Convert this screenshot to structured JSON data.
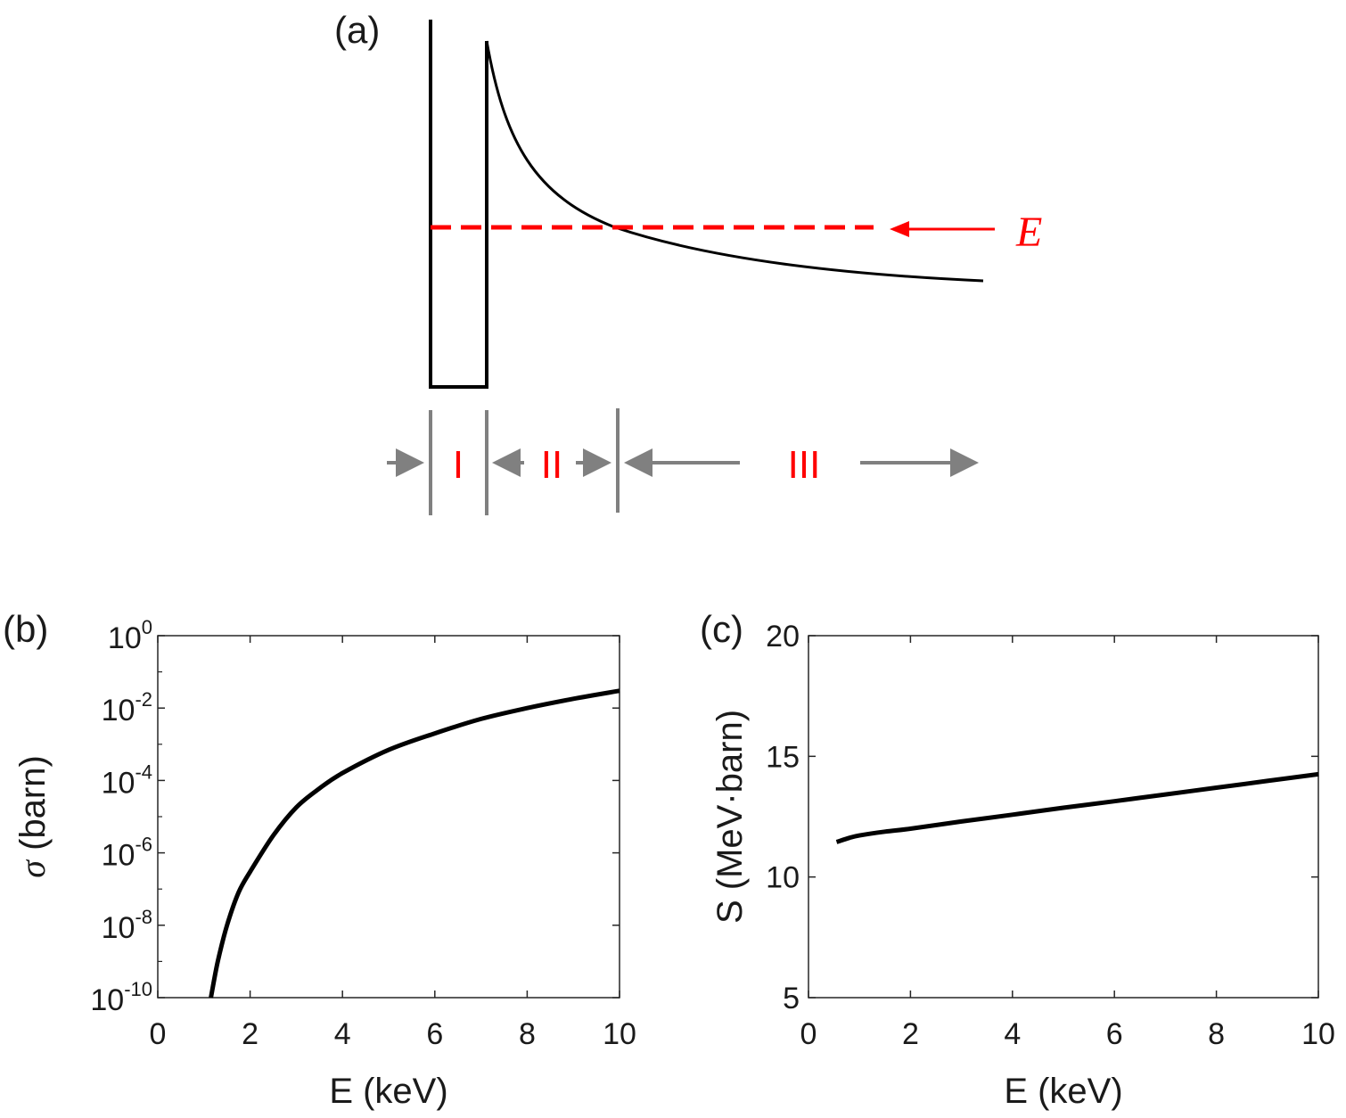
{
  "panel_a": {
    "label": "(a)",
    "energy_label": "E",
    "regions": [
      "I",
      "II",
      "III"
    ],
    "colors": {
      "curve": "#000000",
      "energy": "#ff0000",
      "arrows": "#808080",
      "regions": "#ff0000"
    }
  },
  "chart_data": [
    {
      "id": "b",
      "type": "line",
      "panel_label": "(b)",
      "xlabel": "E (keV)",
      "ylabel_symbol": "σ",
      "ylabel_unit": " (barn)",
      "yscale": "log",
      "xlim": [
        0,
        10
      ],
      "ylim": [
        1e-10,
        1
      ],
      "xticks": [
        "0",
        "2",
        "4",
        "6",
        "8",
        "10"
      ],
      "ytick_base": "10",
      "ytick_exponents": [
        "0",
        "-2",
        "-4",
        "-6",
        "-8",
        "-10"
      ],
      "series": [
        {
          "name": "sigma",
          "x": [
            1.15,
            1.3,
            1.5,
            1.75,
            2.0,
            2.5,
            3.0,
            3.5,
            4.0,
            5.0,
            6.0,
            7.0,
            8.0,
            9.0,
            10.0
          ],
          "y": [
            1e-10,
            1e-09,
            1e-08,
            8e-08,
            3e-07,
            3e-06,
            1.8e-05,
            6e-05,
            0.00016,
            0.0007,
            0.002,
            0.005,
            0.01,
            0.018,
            0.03
          ]
        }
      ]
    },
    {
      "id": "c",
      "type": "line",
      "panel_label": "(c)",
      "xlabel": "E (keV)",
      "ylabel": "S (MeV·barn)",
      "yscale": "linear",
      "xlim": [
        0,
        10
      ],
      "ylim": [
        5,
        20
      ],
      "xticks": [
        "0",
        "2",
        "4",
        "6",
        "8",
        "10"
      ],
      "yticks": [
        "5",
        "10",
        "15",
        "20"
      ],
      "series": [
        {
          "name": "S",
          "x": [
            0.55,
            0.8,
            1.0,
            1.5,
            2.0,
            3.0,
            4.0,
            5.0,
            6.0,
            7.0,
            8.0,
            9.0,
            10.0
          ],
          "y": [
            11.45,
            11.62,
            11.72,
            11.88,
            12.0,
            12.3,
            12.58,
            12.87,
            13.14,
            13.42,
            13.7,
            13.98,
            14.26
          ]
        }
      ]
    }
  ]
}
